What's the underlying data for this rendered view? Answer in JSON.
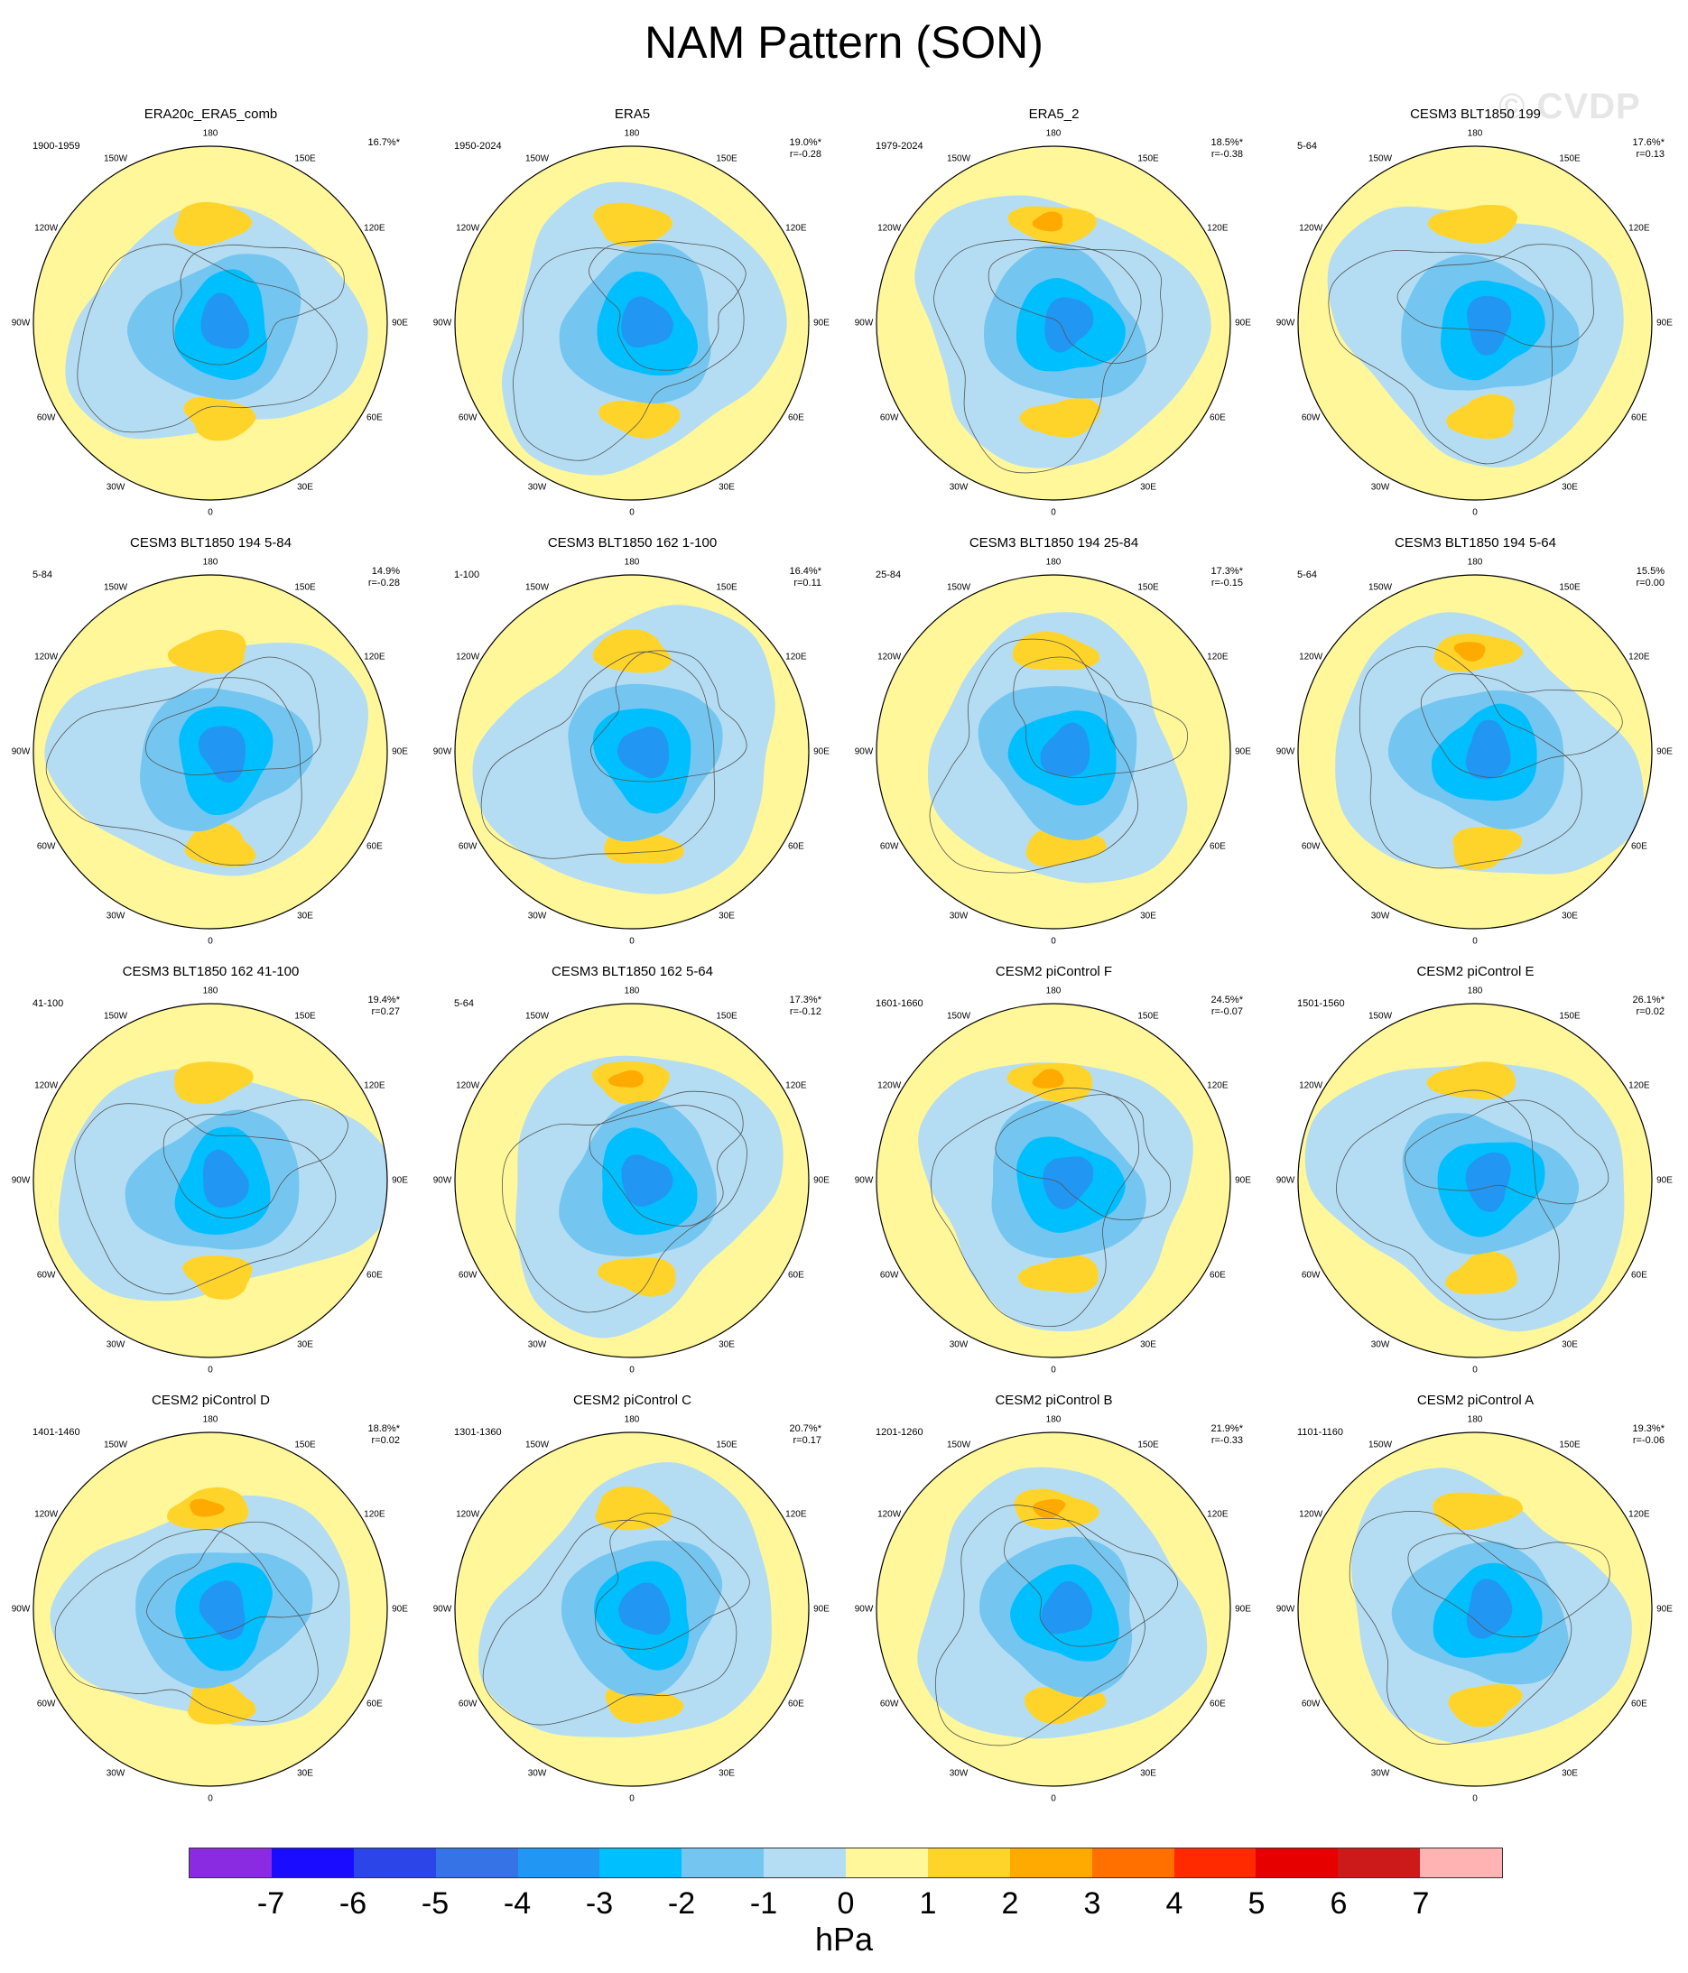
{
  "title": "NAM Pattern (SON)",
  "watermark": "© CVDP",
  "lon_labels": [
    "180",
    "150E",
    "120E",
    "90E",
    "60E",
    "30E",
    "0",
    "30W",
    "60W",
    "90W",
    "120W",
    "150W"
  ],
  "panels": [
    {
      "title": "ERA20c_ERA5_comb",
      "period": "1900-1959",
      "pct": "16.7%*",
      "r": ""
    },
    {
      "title": "ERA5",
      "period": "1950-2024",
      "pct": "19.0%*",
      "r": "r=-0.28"
    },
    {
      "title": "ERA5_2",
      "period": "1979-2024",
      "pct": "18.5%*",
      "r": "r=-0.38"
    },
    {
      "title": "CESM3 BLT1850 199",
      "period": "5-64",
      "pct": "17.6%*",
      "r": "r=0.13"
    },
    {
      "title": "CESM3 BLT1850 194 5-84",
      "period": "5-84",
      "pct": "14.9%",
      "r": "r=-0.28"
    },
    {
      "title": "CESM3 BLT1850 162 1-100",
      "period": "1-100",
      "pct": "16.4%*",
      "r": "r=0.11"
    },
    {
      "title": "CESM3 BLT1850 194 25-84",
      "period": "25-84",
      "pct": "17.3%*",
      "r": "r=-0.15"
    },
    {
      "title": "CESM3 BLT1850 194 5-64",
      "period": "5-64",
      "pct": "15.5%",
      "r": "r=0.00"
    },
    {
      "title": "CESM3 BLT1850 162 41-100",
      "period": "41-100",
      "pct": "19.4%*",
      "r": "r=0.27"
    },
    {
      "title": "CESM3 BLT1850 162 5-64",
      "period": "5-64",
      "pct": "17.3%*",
      "r": "r=-0.12"
    },
    {
      "title": "CESM2 piControl F",
      "period": "1601-1660",
      "pct": "24.5%*",
      "r": "r=-0.07"
    },
    {
      "title": "CESM2 piControl E",
      "period": "1501-1560",
      "pct": "26.1%*",
      "r": "r=0.02"
    },
    {
      "title": "CESM2 piControl D",
      "period": "1401-1460",
      "pct": "18.8%*",
      "r": "r=0.02"
    },
    {
      "title": "CESM2 piControl C",
      "period": "1301-1360",
      "pct": "20.7%*",
      "r": "r=0.17"
    },
    {
      "title": "CESM2 piControl B",
      "period": "1201-1260",
      "pct": "21.9%*",
      "r": "r=-0.33"
    },
    {
      "title": "CESM2 piControl A",
      "period": "1101-1160",
      "pct": "19.3%*",
      "r": "r=-0.06"
    }
  ],
  "colorbar": {
    "colors": [
      "#8a2be2",
      "#1a0dff",
      "#2b45e8",
      "#3573e6",
      "#2196f3",
      "#00bfff",
      "#74c6f1",
      "#b4ddf3",
      "#fff79a",
      "#ffd42a",
      "#ffaa00",
      "#ff7000",
      "#ff2a00",
      "#e60000",
      "#cc1a1a",
      "#ffb3b3"
    ],
    "labels": [
      "-7",
      "-6",
      "-5",
      "-4",
      "-3",
      "-2",
      "-1",
      "0",
      "1",
      "2",
      "3",
      "4",
      "5",
      "6",
      "7"
    ],
    "units": "hPa"
  }
}
